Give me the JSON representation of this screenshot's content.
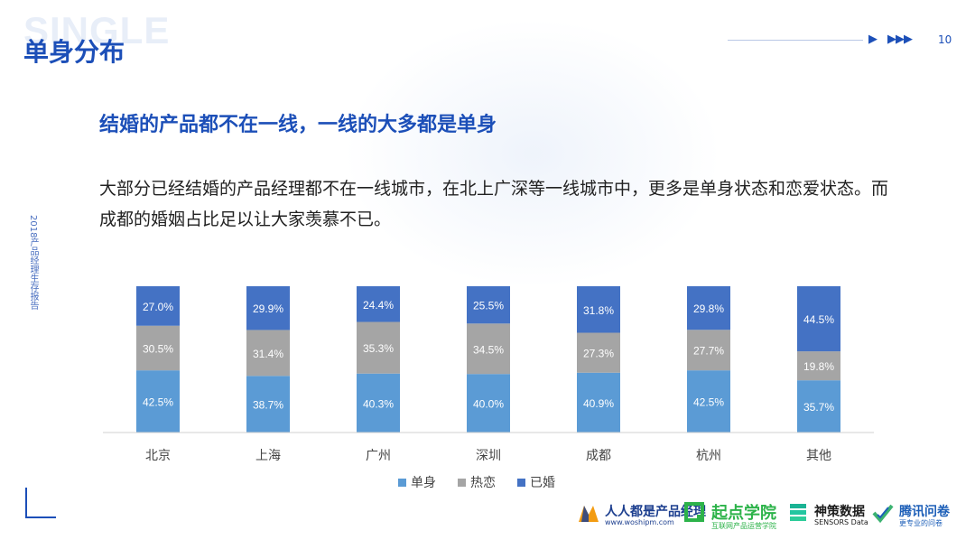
{
  "header": {
    "watermark": "SINGLE",
    "title": "单身分布",
    "page_number": "10"
  },
  "sidebar_vertical_text": "2018产品经理生存报告",
  "headline": "结婚的产品都不在一线，一线的大多都是单身",
  "body_text": "大部分已经结婚的产品经理都不在一线城市，在北上广深等一线城市中，更多是单身状态和恋爱状态。而成都的婚姻占比足以让大家羡慕不已。",
  "chart_data": {
    "type": "bar",
    "stacked": true,
    "percent_stacked": true,
    "categories": [
      "北京",
      "上海",
      "广州",
      "深圳",
      "成都",
      "杭州",
      "其他"
    ],
    "series": [
      {
        "name": "单身",
        "color": "#5b9bd5",
        "values": [
          42.5,
          38.7,
          40.3,
          40.0,
          40.9,
          42.5,
          35.7
        ]
      },
      {
        "name": "热恋",
        "color": "#a5a5a5",
        "values": [
          30.5,
          31.4,
          35.3,
          34.5,
          27.3,
          27.7,
          19.8
        ]
      },
      {
        "name": "已婚",
        "color": "#4472c4",
        "values": [
          27.0,
          29.9,
          24.4,
          25.5,
          31.8,
          29.8,
          44.5
        ]
      }
    ],
    "value_labels": [
      [
        "42.5%",
        "38.7%",
        "40.3%",
        "40.0%",
        "40.9%",
        "42.5%",
        "35.7%"
      ],
      [
        "30.5%",
        "31.4%",
        "35.3%",
        "34.5%",
        "27.3%",
        "27.7%",
        "19.8%"
      ],
      [
        "27.0%",
        "29.9%",
        "24.4%",
        "25.5%",
        "31.8%",
        "29.8%",
        "44.5%"
      ]
    ],
    "legend_position": "bottom",
    "grid": false
  },
  "logos": [
    {
      "icon": "mountain-m-logo",
      "name": "人人都是产品经理",
      "sub": "www.woshipm.com",
      "color": "#1d3f8f"
    },
    {
      "icon": "square-q-logo",
      "name": "起点学院",
      "sub": "互联网产品运营学院",
      "color": "#2db34a"
    },
    {
      "icon": "stacked-s-logo",
      "name": "神策数据",
      "sub": "SENSORS Data",
      "color": "#1a1a1a"
    },
    {
      "icon": "check-swoosh-logo",
      "name": "腾讯问卷",
      "sub": "更专业的问卷",
      "color": "#1d5fb8"
    }
  ]
}
